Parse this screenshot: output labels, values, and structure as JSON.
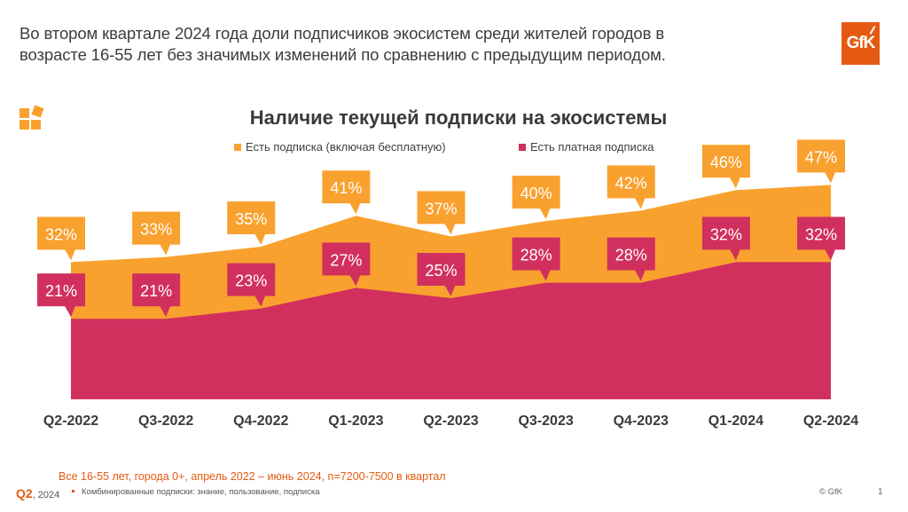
{
  "headline": "Во втором квартале 2024 года доли подписчиков экосистем среди жителей городов в возрасте 16-55 лет без значимых изменений по сравнению с предыдущим периодом.",
  "logo": {
    "text": "GfK",
    "color": "#E55A11"
  },
  "brand_icon": "stacked-squares-icon",
  "footer": {
    "sample_note": "Все 16-55 лет, города 0+, апрель 2022 – июнь 2024, n=7200-7500 в квартал",
    "period_bold": "Q2",
    "period_rest": ", 2024",
    "note": "Комбинированные подписки: знание, пользование, подписка",
    "copyright": "© GfK",
    "page": "1"
  },
  "colors": {
    "any_subscription": "#F9A12E",
    "paid_subscription": "#D1305E",
    "accent": "#E55A11"
  },
  "chart_data": {
    "type": "area",
    "title": "Наличие текущей подписки на экосистемы",
    "categories": [
      "Q2-2022",
      "Q3-2022",
      "Q4-2022",
      "Q1-2023",
      "Q2-2023",
      "Q3-2023",
      "Q4-2023",
      "Q1-2024",
      "Q2-2024"
    ],
    "series": [
      {
        "name": "Есть подписка (включая бесплатную)",
        "values": [
          32,
          33,
          35,
          41,
          37,
          40,
          42,
          46,
          47
        ],
        "color": "#F9A12E",
        "labels": [
          "32%",
          "33%",
          "35%",
          "41%",
          "37%",
          "40%",
          "42%",
          "46%",
          "47%"
        ]
      },
      {
        "name": "Есть платная подписка",
        "values": [
          21,
          21,
          23,
          27,
          25,
          28,
          28,
          32,
          32
        ],
        "color": "#D1305E",
        "labels": [
          "21%",
          "21%",
          "23%",
          "27%",
          "25%",
          "28%",
          "28%",
          "32%",
          "32%"
        ]
      }
    ],
    "xlabel": "",
    "ylabel": "",
    "ylim": [
      5,
      50
    ],
    "grid": false,
    "legend_position": "top",
    "unit": "%"
  }
}
